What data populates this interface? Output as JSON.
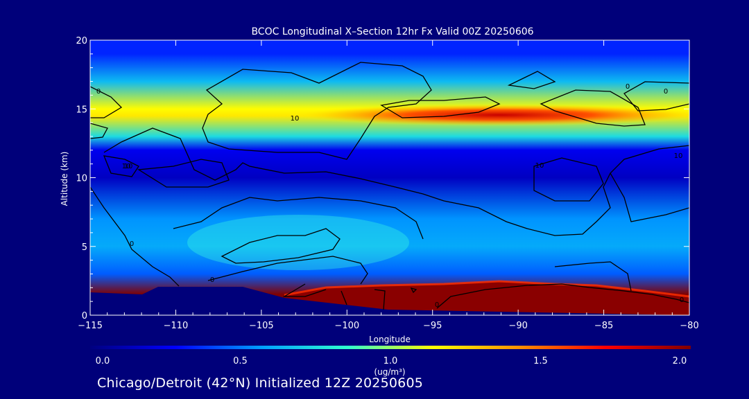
{
  "chart_data": {
    "type": "heatmap",
    "title": "BCOC Longitudinal X–Section 12hr  Fx Valid 00Z 20250606",
    "xlabel": "Longitude",
    "ylabel": "Altitude (km)",
    "xlim": [
      -115,
      -80
    ],
    "ylim": [
      0,
      20
    ],
    "x_ticks": [
      -115,
      -110,
      -105,
      -100,
      -95,
      -90,
      -85,
      -80
    ],
    "x_tick_labels": [
      "−115",
      "−110",
      "−105",
      "−100",
      "−95",
      "−90",
      "−85",
      "−80"
    ],
    "y_ticks": [
      0,
      5,
      10,
      15,
      20
    ],
    "y_tick_labels": [
      "0",
      "5",
      "10",
      "15",
      "20"
    ],
    "colorbar": {
      "min": 0.0,
      "max": 2.0,
      "ticks": [
        0.0,
        0.5,
        1.0,
        1.5,
        2.0
      ],
      "tick_labels": [
        "0.0",
        "0.5",
        "1.0",
        "1.5",
        "2.0"
      ],
      "unit_label": "(ug/m³)",
      "colors": [
        "#00007f",
        "#0000ff",
        "#00a0ff",
        "#2fffcf",
        "#ffff00",
        "#ff9000",
        "#ff0000",
        "#800000"
      ]
    },
    "contour_levels": [
      0,
      10
    ],
    "contour_labels": [
      "0",
      "0",
      "0",
      "0",
      "0",
      "0",
      "0",
      "10",
      "10",
      "10",
      "10",
      "10"
    ],
    "concentration_bands": [
      {
        "alt_km": 19.0,
        "value": 0.35
      },
      {
        "alt_km": 17.0,
        "value": 0.65
      },
      {
        "alt_km": 15.0,
        "value": 1.15
      },
      {
        "alt_km": 14.5,
        "value": 1.2
      },
      {
        "alt_km": 13.0,
        "value": 0.75
      },
      {
        "alt_km": 12.0,
        "value": 0.25
      },
      {
        "alt_km": 10.0,
        "value": 0.15
      },
      {
        "alt_km": 7.0,
        "value": 0.55
      },
      {
        "alt_km": 5.0,
        "value": 0.6
      },
      {
        "alt_km": 3.0,
        "value": 0.45
      },
      {
        "alt_km": 1.5,
        "value": 2.0
      }
    ],
    "upper_maximum": {
      "lon_range": [
        -100,
        -83
      ],
      "alt_km": 14.6,
      "value": 1.85
    },
    "surface_maximum": {
      "lon_range": [
        -103.5,
        -80
      ],
      "alt_km_range": [
        0,
        2.2
      ],
      "value": 2.0
    },
    "terrain": [
      [
        -115,
        1.6
      ],
      [
        -112,
        1.5
      ],
      [
        -111,
        2.0
      ],
      [
        -106,
        2.0
      ],
      [
        -103.5,
        1.2
      ]
    ]
  },
  "footer": "Chicago/Detroit (42°N) Initialized 12Z 20250605"
}
